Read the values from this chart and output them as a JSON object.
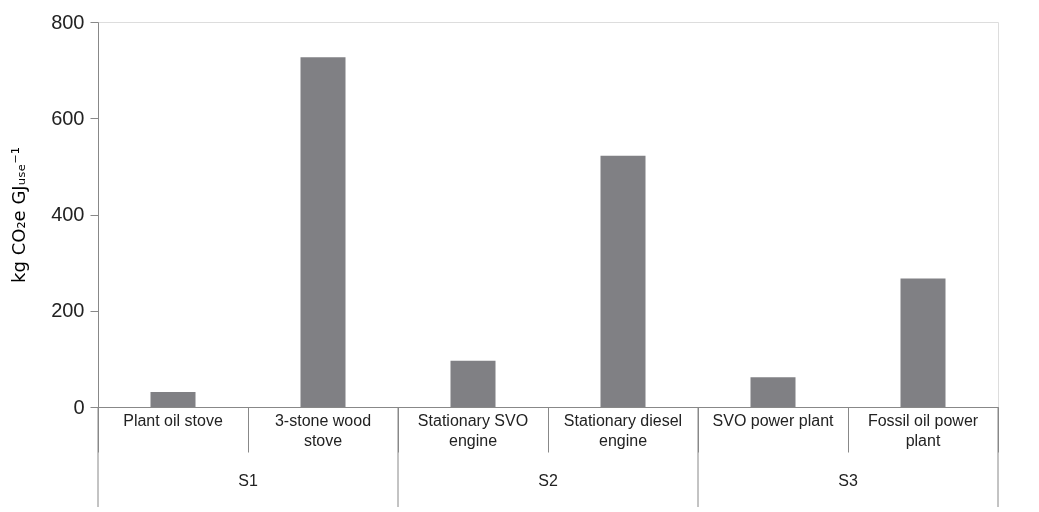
{
  "chart_data": {
    "type": "bar",
    "ylabel": "kg CO₂e GJᵤₛₑ⁻¹",
    "categories": [
      "Plant oil stove",
      "3-stone wood stove",
      "Stationary SVO engine",
      "Stationary diesel engine",
      "SVO power plant",
      "Fossil oil power plant"
    ],
    "values": [
      31,
      727,
      96,
      522,
      62,
      267
    ],
    "color": "#808084",
    "ylim": [
      0,
      800
    ],
    "yticks": [
      0,
      200,
      400,
      600,
      800
    ],
    "annotations": [
      "S1",
      "S2",
      "S3"
    ],
    "grid": false
  }
}
